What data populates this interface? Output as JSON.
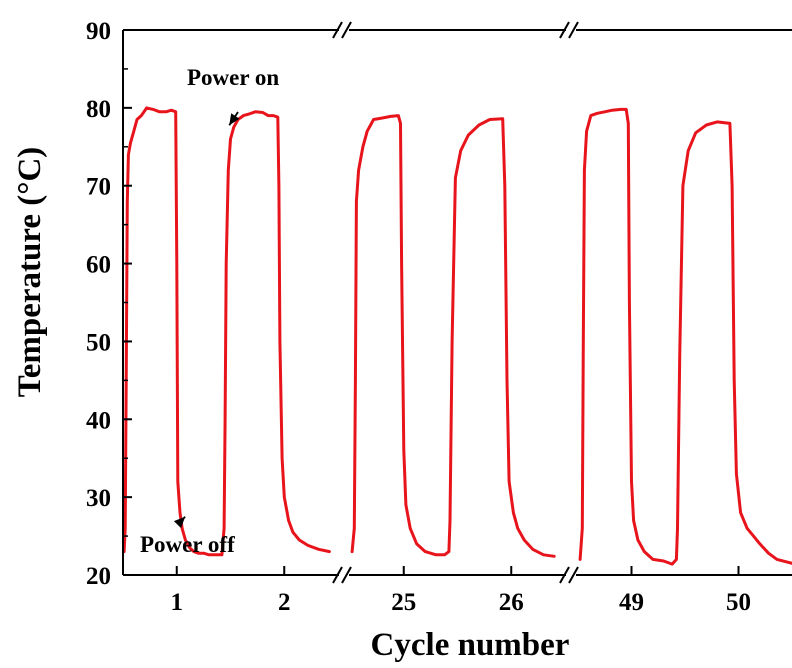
{
  "chart_data": {
    "type": "line",
    "title": "",
    "xlabel": "Cycle number",
    "ylabel": "Temperature (°C)",
    "ylim": [
      20,
      90
    ],
    "yticks": [
      20,
      30,
      40,
      50,
      60,
      70,
      80,
      90
    ],
    "x_axis_broken": true,
    "x_segments": [
      {
        "range": [
          0.5,
          2.5
        ],
        "ticks": [
          1,
          2
        ],
        "tick_labels": [
          "1",
          "2"
        ]
      },
      {
        "range": [
          24.5,
          26.5
        ],
        "ticks": [
          25,
          26
        ],
        "tick_labels": [
          "25",
          "26"
        ]
      },
      {
        "range": [
          48.5,
          50.5
        ],
        "ticks": [
          49,
          50
        ],
        "tick_labels": [
          "49",
          "50"
        ]
      }
    ],
    "grid": false,
    "series": [
      {
        "color": "#e8141b",
        "segments": [
          {
            "x": [
              0.51,
              0.52,
              0.53,
              0.54,
              0.55,
              0.57,
              0.6,
              0.63,
              0.67,
              0.72,
              0.78,
              0.84,
              0.9,
              0.95,
              0.99,
              1.0,
              1.01,
              1.03,
              1.05,
              1.08,
              1.12,
              1.16,
              1.2,
              1.25,
              1.3,
              1.36,
              1.42,
              1.44,
              1.45,
              1.46,
              1.48,
              1.5,
              1.53,
              1.57,
              1.62,
              1.67,
              1.73,
              1.8,
              1.85,
              1.9,
              1.94,
              1.95,
              1.96,
              1.98,
              2.0,
              2.04,
              2.08,
              2.14,
              2.22,
              2.32,
              2.42
            ],
            "y": [
              23.0,
              26.0,
              45.0,
              68.0,
              74.0,
              75.5,
              77.0,
              78.5,
              79.0,
              80.0,
              79.8,
              79.5,
              79.5,
              79.7,
              79.5,
              60.0,
              32.0,
              28.0,
              26.0,
              24.5,
              23.5,
              23.0,
              22.8,
              22.8,
              22.6,
              22.6,
              22.6,
              26.0,
              40.0,
              60.0,
              72.0,
              76.0,
              77.5,
              78.5,
              79.0,
              79.2,
              79.5,
              79.4,
              79.0,
              79.0,
              78.8,
              70.0,
              50.0,
              35.0,
              30.0,
              27.0,
              25.5,
              24.5,
              23.8,
              23.3,
              23.0
            ]
          },
          {
            "x": [
              24.52,
              24.54,
              24.55,
              24.56,
              24.58,
              24.62,
              24.66,
              24.72,
              24.8,
              24.88,
              24.95,
              24.97,
              24.98,
              25.0,
              25.02,
              25.06,
              25.12,
              25.2,
              25.3,
              25.38,
              25.42,
              25.43,
              25.45,
              25.48,
              25.53,
              25.6,
              25.7,
              25.8,
              25.92,
              25.94,
              25.96,
              25.98,
              26.02,
              26.06,
              26.12,
              26.2,
              26.3,
              26.4
            ],
            "y": [
              23.0,
              26.0,
              45.0,
              68.0,
              72.0,
              75.0,
              77.0,
              78.5,
              78.7,
              78.9,
              79.0,
              78.0,
              60.0,
              36.0,
              29.0,
              26.0,
              24.0,
              23.0,
              22.6,
              22.6,
              23.0,
              27.0,
              50.0,
              71.0,
              74.5,
              76.5,
              77.8,
              78.5,
              78.6,
              70.0,
              45.0,
              32.0,
              28.0,
              26.0,
              24.5,
              23.3,
              22.6,
              22.4
            ]
          },
          {
            "x": [
              48.52,
              48.54,
              48.55,
              48.56,
              48.58,
              48.62,
              48.68,
              48.75,
              48.82,
              48.9,
              48.95,
              48.97,
              48.98,
              49.0,
              49.02,
              49.06,
              49.12,
              49.2,
              49.3,
              49.38,
              49.42,
              49.43,
              49.45,
              49.48,
              49.53,
              49.6,
              49.7,
              49.8,
              49.92,
              49.94,
              49.96,
              49.98,
              50.02,
              50.08,
              50.14,
              50.2,
              50.28,
              50.36,
              50.5
            ],
            "y": [
              22.0,
              26.0,
              50.0,
              72.0,
              77.0,
              79.0,
              79.3,
              79.5,
              79.7,
              79.8,
              79.8,
              78.0,
              55.0,
              32.0,
              27.0,
              24.5,
              23.0,
              22.0,
              21.8,
              21.4,
              22.0,
              26.0,
              48.0,
              70.0,
              74.5,
              76.8,
              77.8,
              78.2,
              78.0,
              70.0,
              45.0,
              33.0,
              28.0,
              26.0,
              25.0,
              24.0,
              22.8,
              22.0,
              21.5
            ]
          }
        ]
      }
    ],
    "annotations": [
      {
        "text": "Power on",
        "arrow_to": [
          1.47,
          77.0
        ]
      },
      {
        "text": "Power off",
        "arrow_to": [
          1.05,
          28.0
        ]
      }
    ]
  }
}
